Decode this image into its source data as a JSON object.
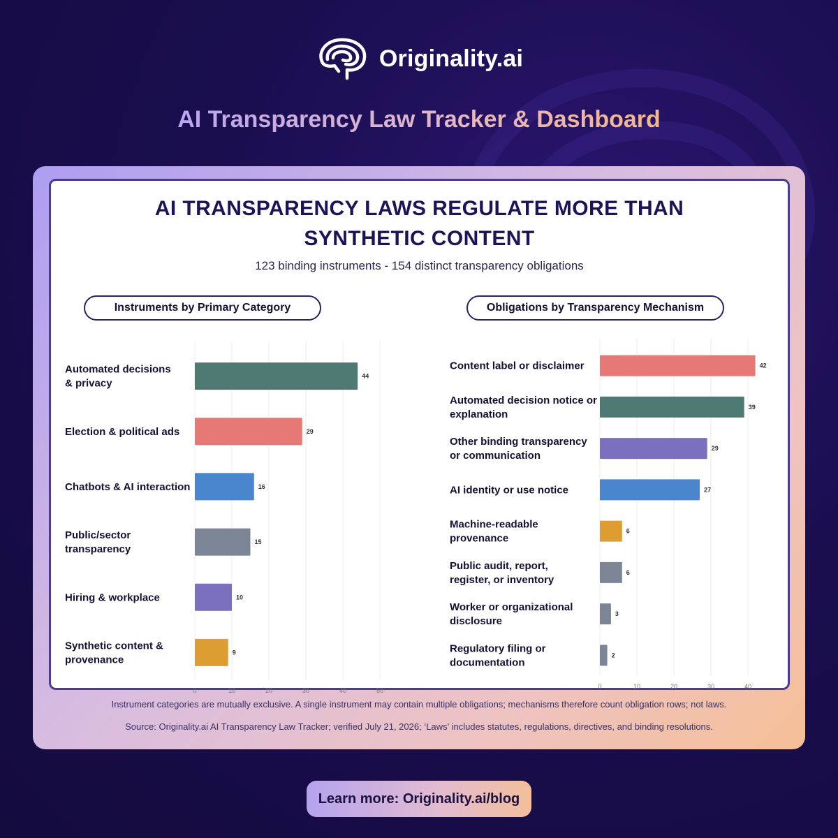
{
  "brand": {
    "name": "Originality.ai",
    "logo_icon": "brain-icon"
  },
  "headline": "AI Transparency Law Tracker & Dashboard",
  "card": {
    "title_line1": "AI TRANSPARENCY LAWS REGULATE MORE THAN",
    "title_line2": "SYNTHETIC CONTENT",
    "subtitle": "123 binding instruments - 154 distinct transparency obligations"
  },
  "chart_data": [
    {
      "type": "bar",
      "orientation": "horizontal",
      "title": "Instruments by Primary Category",
      "categories": [
        [
          "Automated decisions",
          "& privacy"
        ],
        [
          "Election & political ads"
        ],
        [
          "Chatbots & AI interaction"
        ],
        [
          "Public/sector",
          "transparency"
        ],
        [
          "Hiring & workplace"
        ],
        [
          "Synthetic content &",
          "provenance"
        ]
      ],
      "values": [
        44,
        29,
        16,
        15,
        10,
        9
      ],
      "colors": [
        "#4e7a73",
        "#e67876",
        "#4a86cd",
        "#7b8596",
        "#7b70bd",
        "#de9d33"
      ],
      "xlim": [
        0,
        50
      ],
      "xticks": [
        0,
        10,
        20,
        30,
        40,
        50
      ],
      "grid": true
    },
    {
      "type": "bar",
      "orientation": "horizontal",
      "title": "Obligations by Transparency Mechanism",
      "categories": [
        [
          "Content label or disclaimer"
        ],
        [
          "Automated decision notice or",
          "explanation"
        ],
        [
          "Other binding transparency",
          "or communication"
        ],
        [
          "AI identity or use notice"
        ],
        [
          "Machine-readable",
          "provenance"
        ],
        [
          "Public audit, report,",
          "register, or inventory"
        ],
        [
          "Worker or organizational",
          "disclosure"
        ],
        [
          "Regulatory filing or",
          "documentation"
        ]
      ],
      "values": [
        42,
        39,
        29,
        27,
        6,
        6,
        3,
        2
      ],
      "colors": [
        "#e67876",
        "#4e7a73",
        "#7b70bd",
        "#4a86cd",
        "#de9d33",
        "#7b8596",
        "#7b8596",
        "#7b8596"
      ],
      "xlim": [
        0,
        40
      ],
      "xticks": [
        0,
        10,
        20,
        30,
        40
      ],
      "grid": true
    }
  ],
  "notes": {
    "line1": "Instrument categories are mutually exclusive. A single instrument may contain multiple obligations; mechanisms therefore count obligation rows; not laws.",
    "line2": "Source: Originality.ai AI Transparency Law Tracker; verified July 21, 2026; ‘Laws’ includes statutes, regulations, directives, and binding resolutions."
  },
  "cta": {
    "label": "Learn more: Originality.ai/blog"
  }
}
